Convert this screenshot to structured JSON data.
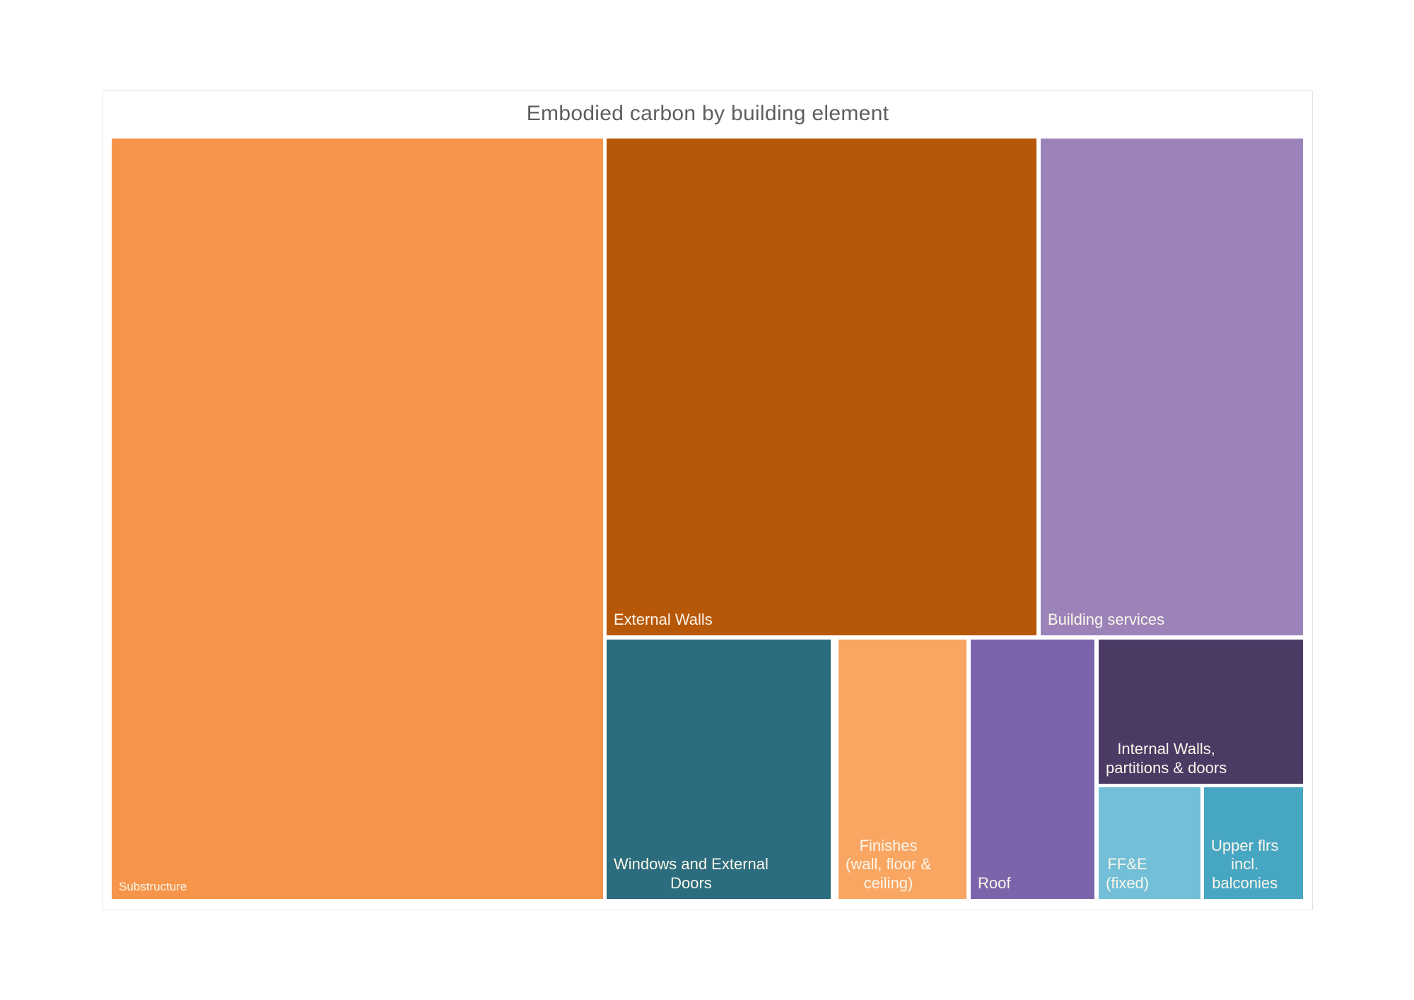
{
  "chart": {
    "title": "Embodied carbon by building element"
  },
  "chart_data": {
    "type": "treemap",
    "title": "Embodied carbon by building element",
    "legend": false,
    "value_note": "share of total embodied carbon, estimated from cell areas (%)",
    "gap_color": "#ffffff",
    "label_color": "#fbf6ea",
    "items": [
      {
        "label": "Substructure",
        "value_pct_est": 41.9,
        "color": "#F6954A"
      },
      {
        "label": "External Walls",
        "value_pct_est": 23.9,
        "color": "#B75708"
      },
      {
        "label": "Building services",
        "value_pct_est": 14.6,
        "color": "#9B83B9"
      },
      {
        "label": "Windows and External\nDoors",
        "value_pct_est": 6.5,
        "color": "#2B6C7E"
      },
      {
        "label": "Finishes\n(wall, floor &\nceiling)",
        "value_pct_est": 3.7,
        "color": "#F9A663"
      },
      {
        "label": "Roof",
        "value_pct_est": 3.6,
        "color": "#7C64AB"
      },
      {
        "label": "Internal Walls,\npartitions & doors",
        "value_pct_est": 3.3,
        "color": "#4A3A64"
      },
      {
        "label": "FF&E\n(fixed)",
        "value_pct_est": 1.3,
        "color": "#72BFD7"
      },
      {
        "label": "Upper flrs\nincl.\nbalconies",
        "value_pct_est": 1.2,
        "color": "#47A6C2"
      }
    ]
  }
}
